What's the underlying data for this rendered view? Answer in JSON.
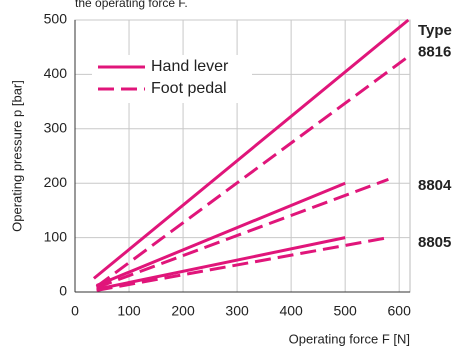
{
  "chart_data": {
    "type": "line",
    "subtitle": "the operating force F.",
    "xlabel": "Operating force F [N]",
    "ylabel": "Operating pressure p [bar]",
    "xlim": [
      0,
      620
    ],
    "xticks": [
      0,
      100,
      200,
      300,
      400,
      500,
      600
    ],
    "ylim": [
      0,
      500
    ],
    "yticks": [
      0,
      100,
      200,
      300,
      400,
      500
    ],
    "grid": true,
    "color": "#e0157a",
    "legend": [
      {
        "label": "Hand lever",
        "style": "solid"
      },
      {
        "label": "Foot pedal",
        "style": "dashed"
      }
    ],
    "annotations": [
      {
        "text": "Type",
        "y": 480
      },
      {
        "text": "8816",
        "y": 440
      },
      {
        "text": "8804",
        "y": 195
      },
      {
        "text": "8805",
        "y": 90
      }
    ],
    "series": [
      {
        "style": "solid",
        "x": [
          35,
          617
        ],
        "values": [
          25,
          500
        ]
      },
      {
        "style": "dashed",
        "x": [
          40,
          620
        ],
        "values": [
          10,
          435
        ]
      },
      {
        "style": "solid",
        "x": [
          40,
          500
        ],
        "values": [
          12,
          200
        ]
      },
      {
        "style": "dashed",
        "x": [
          40,
          580
        ],
        "values": [
          8,
          207
        ]
      },
      {
        "style": "solid",
        "x": [
          40,
          500
        ],
        "values": [
          5,
          100
        ]
      },
      {
        "style": "dashed",
        "x": [
          40,
          580
        ],
        "values": [
          3,
          100
        ]
      }
    ]
  }
}
